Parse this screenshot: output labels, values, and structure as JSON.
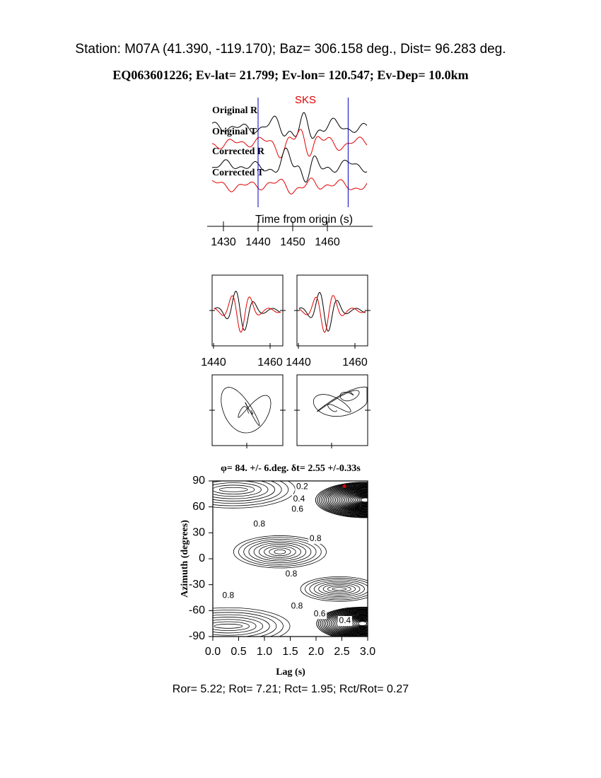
{
  "header": {
    "station": "Station: M07A (41.390, -119.170); Baz=  306.158 deg., Dist=   96.283 deg.",
    "event": "EQ063601226; Ev-lat=  21.799; Ev-lon= 120.547; Ev-Dep= 10.0km"
  },
  "seismograms": {
    "phase": "SKS",
    "traces": [
      "Original R",
      "Original T",
      "Corrected R",
      "Corrected T"
    ],
    "xlabel": "Time from origin (s)",
    "xlim": [
      1425,
      1473
    ],
    "xticks": [
      1430,
      1440,
      1450,
      1460
    ],
    "window": [
      1440,
      1466
    ]
  },
  "particle": {
    "xlim": [
      1439.5,
      1464.5
    ],
    "xticks": [
      1440,
      1460
    ]
  },
  "grid_search": {
    "title": "φ= 84. +/- 6.deg.  δt= 2.55 +/-0.33s",
    "xlabel": "Lag (s)",
    "ylabel": "Azimuth (degrees)",
    "xlim": [
      0,
      3
    ],
    "ylim": [
      -90,
      90
    ],
    "xticks": [
      {
        "value": 0,
        "label": "0.0"
      },
      0.5,
      {
        "value": 1,
        "label": "1.0"
      },
      1.5,
      {
        "value": 2,
        "label": "2.0"
      },
      2.5,
      {
        "value": 3,
        "label": "3.0"
      }
    ],
    "yticks": [
      -90,
      -60,
      -30,
      0,
      30,
      60,
      90
    ],
    "best": {
      "lag": 2.55,
      "azimuth": 84
    },
    "contour_labels": [
      {
        "value": 0.2,
        "lag": 1.73,
        "azimuth": 83
      },
      {
        "value": 0.4,
        "lag": 1.67,
        "azimuth": 69
      },
      {
        "value": 0.6,
        "lag": 1.64,
        "azimuth": 57
      },
      {
        "value": 0.8,
        "lag": 0.9,
        "azimuth": 40
      },
      {
        "value": 0.8,
        "lag": 1.99,
        "azimuth": 23
      },
      {
        "value": 0.8,
        "lag": 1.52,
        "azimuth": -18
      },
      {
        "value": 0.8,
        "lag": 0.3,
        "azimuth": -43
      },
      {
        "value": 0.8,
        "lag": 1.63,
        "azimuth": -55
      },
      {
        "value": 0.6,
        "lag": 2.07,
        "azimuth": -64
      },
      {
        "value": 0.4,
        "lag": 2.56,
        "azimuth": -72
      }
    ]
  },
  "footer": "Ror= 5.22; Rot= 7.21; Rct= 1.95; Rct/Rot= 0.27"
}
